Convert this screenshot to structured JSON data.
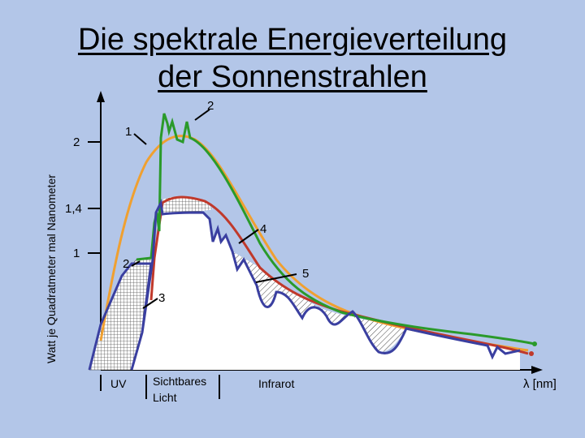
{
  "title": {
    "line1": "Die spektrale Energieverteilung",
    "line2": "der Sonnenstrahlen"
  },
  "ylabel": "Watt je Quadratmeter mal Nanometer",
  "y_ticks": [
    "2",
    "1,4",
    "1"
  ],
  "regions": [
    "UV",
    "Sichtbares",
    "Licht",
    "Infrarot"
  ],
  "xlabel": "λ [nm]",
  "callouts": [
    "1",
    "2",
    "4",
    "5",
    "2",
    "3"
  ],
  "colors": {
    "background": "#b3c6e8",
    "curve_1": "#f0a030",
    "curve_2": "#2a9a2a",
    "curve_red": "#c0392b",
    "curve_blue": "#3a3fa0"
  },
  "chart_data": {
    "type": "line",
    "title": "Die spektrale Energieverteilung der Sonnenstrahlen",
    "ylabel": "Watt je Quadratmeter mal Nanometer",
    "xlabel": "λ [nm]",
    "y_tick_labels": [
      "2",
      "1,4",
      "1"
    ],
    "x_region_labels": [
      "UV",
      "Sichtbares Licht",
      "Infrarot"
    ],
    "curve_labels": [
      "1",
      "2",
      "3",
      "4",
      "5"
    ],
    "grid": false
  }
}
